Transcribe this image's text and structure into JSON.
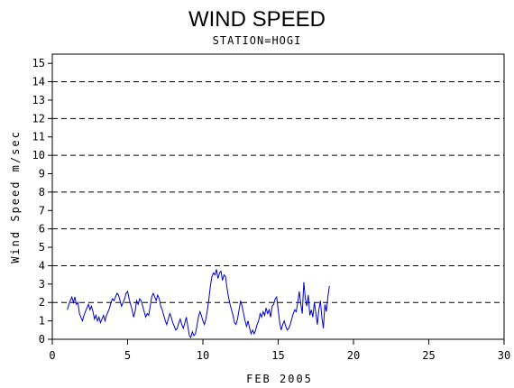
{
  "chart_data": {
    "type": "line",
    "title": "WIND SPEED",
    "subtitle": "STATION=HOGI",
    "xlabel": "FEB 2005",
    "ylabel": "Wind Speed m/sec",
    "xlim": [
      0,
      30
    ],
    "ylim": [
      0,
      15.5
    ],
    "x_ticks": [
      0,
      5,
      10,
      15,
      20,
      25,
      30
    ],
    "y_ticks": [
      0,
      1,
      2,
      3,
      4,
      5,
      6,
      7,
      8,
      9,
      10,
      11,
      12,
      13,
      14,
      15
    ],
    "reference_lines": [
      0,
      2,
      4,
      6,
      8,
      10,
      12,
      14
    ],
    "grid": "dashed horizontal reference lines",
    "line_color": "#0000cc",
    "series": [
      {
        "x": [
          1.0,
          1.1,
          1.2,
          1.3,
          1.4,
          1.5,
          1.6,
          1.7,
          1.8,
          1.9,
          2.0,
          2.1,
          2.2,
          2.3,
          2.4,
          2.5,
          2.6,
          2.7,
          2.8,
          2.9,
          3.0,
          3.1,
          3.2,
          3.3,
          3.4,
          3.5,
          3.6,
          3.7,
          3.8,
          3.9,
          4.0,
          4.1,
          4.2,
          4.3,
          4.4,
          4.5,
          4.6,
          4.7,
          4.8,
          4.9,
          5.0,
          5.1,
          5.2,
          5.3,
          5.4,
          5.5,
          5.6,
          5.7,
          5.8,
          5.9,
          6.0,
          6.1,
          6.2,
          6.3,
          6.4,
          6.5,
          6.6,
          6.7,
          6.8,
          6.9,
          7.0,
          7.1,
          7.2,
          7.3,
          7.4,
          7.5,
          7.6,
          7.7,
          7.8,
          7.9,
          8.0,
          8.1,
          8.2,
          8.3,
          8.4,
          8.5,
          8.6,
          8.7,
          8.8,
          8.9,
          9.0,
          9.1,
          9.2,
          9.3,
          9.4,
          9.5,
          9.6,
          9.7,
          9.8,
          9.9,
          10.0,
          10.1,
          10.2,
          10.3,
          10.4,
          10.5,
          10.6,
          10.7,
          10.8,
          10.9,
          11.0,
          11.1,
          11.2,
          11.3,
          11.4,
          11.5,
          11.6,
          11.7,
          11.8,
          11.9,
          12.0,
          12.1,
          12.2,
          12.3,
          12.4,
          12.5,
          12.6,
          12.7,
          12.8,
          12.9,
          13.0,
          13.1,
          13.2,
          13.3,
          13.4,
          13.5,
          13.6,
          13.7,
          13.8,
          13.9,
          14.0,
          14.1,
          14.2,
          14.3,
          14.4,
          14.5,
          14.6,
          14.7,
          14.8,
          14.9,
          15.0,
          15.1,
          15.2,
          15.3,
          15.4,
          15.5,
          15.6,
          15.7,
          15.8,
          15.9,
          16.0,
          16.1,
          16.2,
          16.3,
          16.4,
          16.5,
          16.6,
          16.7,
          16.8,
          16.9,
          17.0,
          17.1,
          17.2,
          17.3,
          17.4,
          17.5,
          17.6,
          17.7,
          17.8,
          17.9,
          18.0,
          18.1,
          18.2,
          18.3,
          18.4
        ],
        "values": [
          1.6,
          1.9,
          2.1,
          2.3,
          2.0,
          2.3,
          1.9,
          2.0,
          1.4,
          1.2,
          1.0,
          1.3,
          1.5,
          1.7,
          1.9,
          1.6,
          1.8,
          1.5,
          1.1,
          1.3,
          1.0,
          1.2,
          0.9,
          1.1,
          1.3,
          1.0,
          1.3,
          1.5,
          1.7,
          2.0,
          2.2,
          2.1,
          2.3,
          2.5,
          2.4,
          2.1,
          1.8,
          2.0,
          2.2,
          2.5,
          2.6,
          2.2,
          1.9,
          1.6,
          1.2,
          1.5,
          2.1,
          1.9,
          2.2,
          2.1,
          1.8,
          1.5,
          1.2,
          1.4,
          1.3,
          1.8,
          2.3,
          2.5,
          2.3,
          2.1,
          2.4,
          2.2,
          1.8,
          1.6,
          1.3,
          1.0,
          0.8,
          1.1,
          1.4,
          1.2,
          0.9,
          0.7,
          0.5,
          0.6,
          0.9,
          1.1,
          0.8,
          0.6,
          0.9,
          1.2,
          0.7,
          0.2,
          0.1,
          0.4,
          0.2,
          0.3,
          0.7,
          1.2,
          1.5,
          1.3,
          1.0,
          0.8,
          1.1,
          1.6,
          2.2,
          2.9,
          3.4,
          3.6,
          3.5,
          3.8,
          3.3,
          3.6,
          3.7,
          3.2,
          3.5,
          3.4,
          2.8,
          2.3,
          1.9,
          1.6,
          1.3,
          0.9,
          0.8,
          1.1,
          1.6,
          2.1,
          1.8,
          1.4,
          1.0,
          0.7,
          1.0,
          0.6,
          0.3,
          0.5,
          0.3,
          0.5,
          0.8,
          1.0,
          1.4,
          1.2,
          1.5,
          1.3,
          1.7,
          1.4,
          1.6,
          1.2,
          1.8,
          1.9,
          2.2,
          2.3,
          1.6,
          0.9,
          0.5,
          0.8,
          1.0,
          0.7,
          0.5,
          0.6,
          0.8,
          1.1,
          1.4,
          1.6,
          1.5,
          2.0,
          2.6,
          1.9,
          1.4,
          3.1,
          2.2,
          1.8,
          2.4,
          1.3,
          1.6,
          1.2,
          2.0,
          1.4,
          0.8,
          1.6,
          2.1,
          1.2,
          0.6,
          1.9,
          1.5,
          2.3,
          2.9
        ]
      }
    ]
  }
}
